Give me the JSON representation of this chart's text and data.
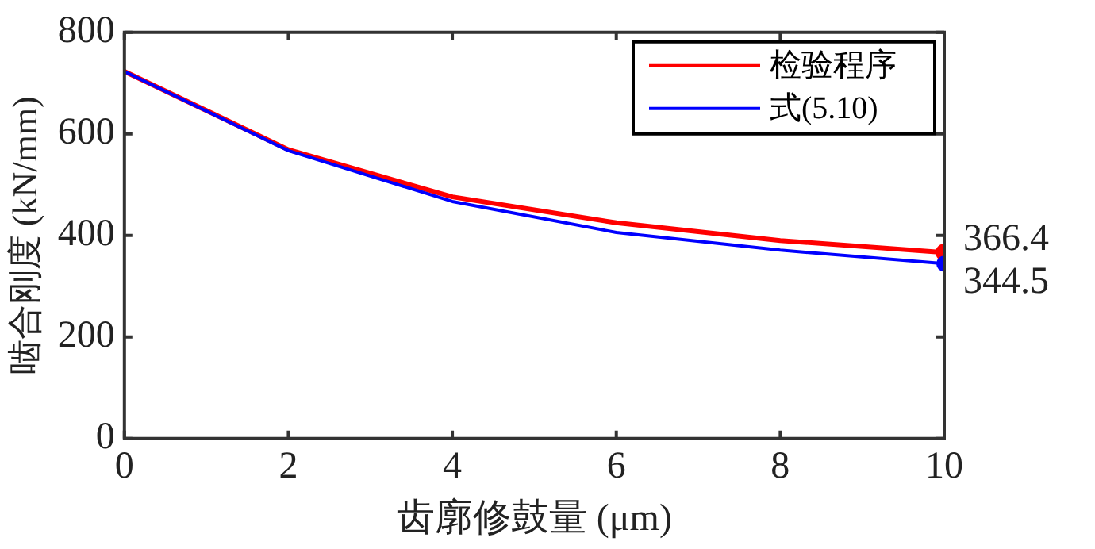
{
  "chart_data": {
    "type": "line",
    "xlabel": "齿廓修鼓量 (μm)",
    "ylabel": "啮合刚度 (kN/mm)",
    "x": [
      0,
      2,
      4,
      6,
      8,
      10
    ],
    "series": [
      {
        "name": "检验程序",
        "color": "#ff0000",
        "values": [
          723,
          569,
          476,
          425,
          390,
          366.4
        ],
        "value_labels": [
          null,
          null,
          null,
          null,
          null,
          "366.4"
        ]
      },
      {
        "name": "式(5.10)",
        "color": "#0000ff",
        "values": [
          723,
          567,
          467,
          406,
          371,
          344.5
        ],
        "value_labels": [
          null,
          null,
          null,
          null,
          null,
          "344.5"
        ]
      }
    ],
    "xlim": [
      0,
      10
    ],
    "xticks": [
      0,
      2,
      4,
      6,
      8,
      10
    ],
    "ylim": [
      0,
      800
    ],
    "yticks": [
      0,
      200,
      400,
      600,
      800
    ],
    "grid": false,
    "legend": "top right",
    "line_style": "solid"
  }
}
